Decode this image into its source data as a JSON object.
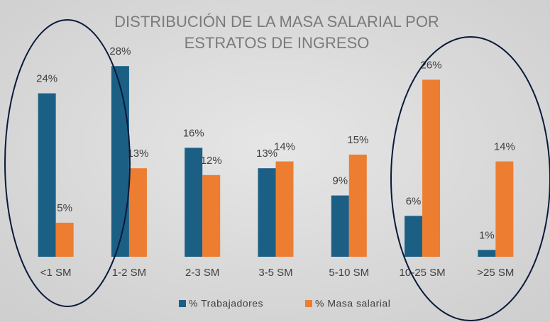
{
  "chart_data": {
    "type": "bar",
    "title": [
      "DISTRIBUCIÓN DE LA MASA SALARIAL POR",
      "ESTRATOS DE INGRESO"
    ],
    "categories": [
      "<1 SM",
      "1-2 SM",
      "2-3 SM",
      "3-5 SM",
      "5-10 SM",
      "10-25 SM",
      ">25 SM"
    ],
    "series": [
      {
        "name": "% Trabajadores",
        "color": "#1b5f85",
        "values": [
          24,
          28,
          16,
          13,
          9,
          6,
          1
        ],
        "value_labels": [
          "24%",
          "28%",
          "16%",
          "13%",
          "9%",
          "6%",
          "1%"
        ]
      },
      {
        "name": "% Masa salarial",
        "color": "#ed7d31",
        "values": [
          5,
          13,
          12,
          14,
          15,
          26,
          14
        ],
        "value_labels": [
          "5%",
          "13%",
          "12%",
          "14%",
          "15%",
          "26%",
          "14%"
        ]
      }
    ],
    "ylim": [
      0,
      30
    ],
    "legend": "bottom"
  }
}
